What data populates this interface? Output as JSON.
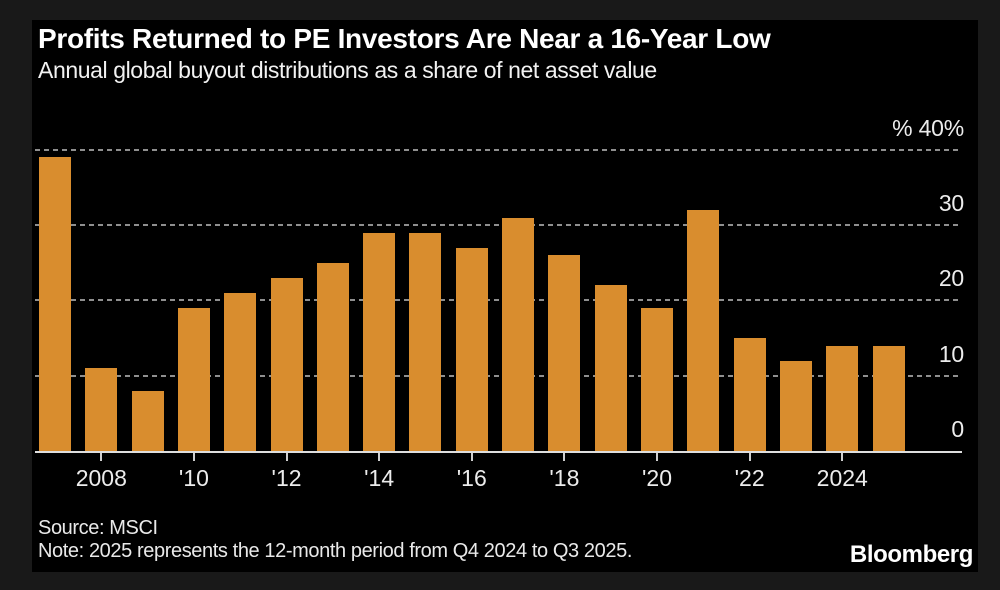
{
  "chart": {
    "title": "Profits Returned to PE Investors Are Near a 16-Year Low",
    "subtitle": "Annual global buyout distributions as a share of net asset value",
    "source": "Source: MSCI",
    "note": "Note: 2025 represents the 12-month period from Q4 2024 to Q3 2025.",
    "brand": "Bloomberg"
  },
  "chart_data": {
    "type": "bar",
    "title": "Profits Returned to PE Investors Are Near a 16-Year Low",
    "subtitle": "Annual global buyout distributions as a share of net asset value",
    "unit": "%",
    "categories": [
      2007,
      2008,
      2009,
      2010,
      2011,
      2012,
      2013,
      2014,
      2015,
      2016,
      2017,
      2018,
      2019,
      2020,
      2021,
      2022,
      2023,
      2024,
      2025
    ],
    "values": [
      39,
      11,
      8,
      19,
      21,
      23,
      25,
      29,
      29,
      27,
      31,
      26,
      22,
      19,
      32,
      15,
      12,
      14,
      14
    ],
    "ylim": [
      0,
      46.6
    ],
    "y_ticks": [
      {
        "value": 40,
        "label": "% 40%"
      },
      {
        "value": 30,
        "label": "30"
      },
      {
        "value": 20,
        "label": "20"
      },
      {
        "value": 10,
        "label": "10"
      },
      {
        "value": 0,
        "label": "0"
      }
    ],
    "x_ticks": [
      {
        "year": 2008,
        "label": "2008"
      },
      {
        "year": 2010,
        "label": "'10"
      },
      {
        "year": 2012,
        "label": "'12"
      },
      {
        "year": 2014,
        "label": "'14"
      },
      {
        "year": 2016,
        "label": "'16"
      },
      {
        "year": 2018,
        "label": "'18"
      },
      {
        "year": 2020,
        "label": "'20"
      },
      {
        "year": 2022,
        "label": "'22"
      },
      {
        "year": 2024,
        "label": "2024"
      }
    ],
    "grid": "horizontal-dashed",
    "legend": "none",
    "colors": {
      "background_outer": "#191919",
      "background_panel": "#000000",
      "bar": "#d98d2e",
      "gridline": "#8f8f8f",
      "axis_line": "#dedede",
      "text": "#ffffff",
      "tick_text": "#ececec"
    }
  }
}
